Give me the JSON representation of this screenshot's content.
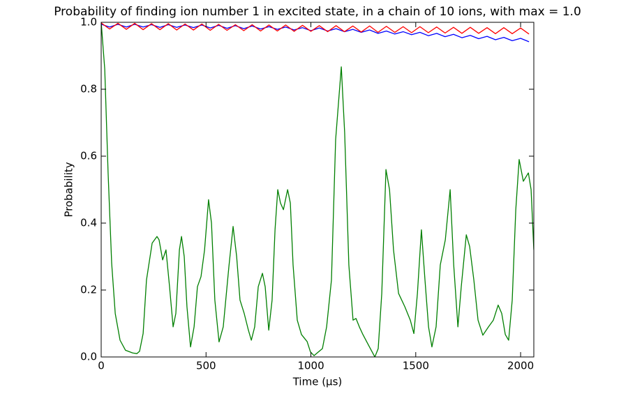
{
  "chart_data": {
    "type": "line",
    "title": "Probability of finding ion number 1 in excited state, in a chain of 10 ions, with max = 1.0",
    "xlabel": "Time (μs)",
    "ylabel": "Probability",
    "xlim": [
      0,
      2063
    ],
    "ylim": [
      0,
      1
    ],
    "xticks": [
      0,
      500,
      1000,
      1500,
      2000
    ],
    "yticks": [
      {
        "value": 0,
        "label": "0.0"
      },
      0.2,
      0.4,
      0.6,
      0.8,
      {
        "value": 1,
        "label": "1.0"
      }
    ],
    "grid": false,
    "series": [
      {
        "color": "#007f00",
        "x": [
          0,
          17,
          33,
          50,
          67,
          90,
          116,
          150,
          170,
          183,
          200,
          216,
          243,
          266,
          276,
          293,
          309,
          326,
          343,
          356,
          373,
          383,
          396,
          409,
          426,
          443,
          459,
          476,
          493,
          512,
          526,
          542,
          562,
          582,
          609,
          629,
          646,
          662,
          682,
          702,
          716,
          732,
          749,
          769,
          782,
          799,
          815,
          829,
          842,
          855,
          869,
          889,
          902,
          915,
          935,
          955,
          982,
          998,
          1015,
          1032,
          1055,
          1075,
          1098,
          1118,
          1145,
          1161,
          1181,
          1201,
          1215,
          1231,
          1248,
          1275,
          1305,
          1321,
          1338,
          1358,
          1375,
          1394,
          1418,
          1448,
          1474,
          1491,
          1508,
          1527,
          1544,
          1561,
          1577,
          1597,
          1617,
          1641,
          1664,
          1681,
          1701,
          1717,
          1741,
          1757,
          1777,
          1797,
          1820,
          1847,
          1870,
          1893,
          1910,
          1927,
          1943,
          1960,
          1977,
          1993,
          2013,
          2037,
          2050,
          2063
        ],
        "values": [
          1.0,
          0.86,
          0.55,
          0.28,
          0.13,
          0.05,
          0.02,
          0.012,
          0.01,
          0.017,
          0.07,
          0.23,
          0.34,
          0.36,
          0.35,
          0.29,
          0.32,
          0.21,
          0.09,
          0.13,
          0.32,
          0.36,
          0.3,
          0.15,
          0.03,
          0.09,
          0.21,
          0.24,
          0.32,
          0.47,
          0.4,
          0.17,
          0.045,
          0.09,
          0.27,
          0.39,
          0.3,
          0.17,
          0.13,
          0.08,
          0.05,
          0.09,
          0.21,
          0.25,
          0.21,
          0.08,
          0.17,
          0.38,
          0.5,
          0.46,
          0.44,
          0.5,
          0.46,
          0.275,
          0.11,
          0.067,
          0.046,
          0.015,
          0.004,
          0.013,
          0.025,
          0.09,
          0.23,
          0.65,
          0.867,
          0.67,
          0.275,
          0.11,
          0.115,
          0.09,
          0.067,
          0.035,
          0.0,
          0.025,
          0.19,
          0.56,
          0.5,
          0.32,
          0.19,
          0.15,
          0.11,
          0.07,
          0.19,
          0.38,
          0.23,
          0.09,
          0.03,
          0.09,
          0.275,
          0.35,
          0.5,
          0.275,
          0.09,
          0.21,
          0.365,
          0.33,
          0.23,
          0.11,
          0.065,
          0.09,
          0.11,
          0.155,
          0.13,
          0.067,
          0.05,
          0.17,
          0.44,
          0.59,
          0.525,
          0.55,
          0.5,
          0.32
        ]
      },
      {
        "color": "#0000ff",
        "x": [
          0,
          40,
          80,
          120,
          160,
          200,
          240,
          280,
          320,
          360,
          400,
          440,
          480,
          520,
          560,
          600,
          640,
          680,
          720,
          760,
          800,
          840,
          880,
          920,
          960,
          1000,
          1040,
          1080,
          1120,
          1160,
          1200,
          1240,
          1280,
          1320,
          1360,
          1400,
          1440,
          1480,
          1520,
          1560,
          1600,
          1640,
          1680,
          1720,
          1760,
          1800,
          1840,
          1880,
          1920,
          1960,
          2000,
          2040
        ],
        "values": [
          0.994,
          0.986,
          0.994,
          0.986,
          0.994,
          0.986,
          0.993,
          0.985,
          0.993,
          0.985,
          0.992,
          0.984,
          0.992,
          0.983,
          0.991,
          0.982,
          0.99,
          0.981,
          0.989,
          0.98,
          0.987,
          0.979,
          0.986,
          0.977,
          0.984,
          0.975,
          0.983,
          0.974,
          0.981,
          0.972,
          0.979,
          0.97,
          0.977,
          0.967,
          0.974,
          0.965,
          0.972,
          0.963,
          0.97,
          0.96,
          0.967,
          0.957,
          0.964,
          0.954,
          0.961,
          0.951,
          0.958,
          0.948,
          0.955,
          0.945,
          0.952,
          0.942
        ]
      },
      {
        "color": "#ff0000",
        "x": [
          0,
          40,
          80,
          120,
          160,
          200,
          240,
          280,
          320,
          360,
          400,
          440,
          480,
          520,
          560,
          600,
          640,
          680,
          720,
          760,
          800,
          840,
          880,
          920,
          960,
          1000,
          1040,
          1080,
          1120,
          1160,
          1200,
          1240,
          1280,
          1320,
          1360,
          1400,
          1440,
          1480,
          1520,
          1560,
          1600,
          1640,
          1680,
          1720,
          1760,
          1800,
          1840,
          1880,
          1920,
          1960,
          2000,
          2040
        ],
        "values": [
          0.998,
          0.98,
          0.997,
          0.979,
          0.997,
          0.978,
          0.996,
          0.978,
          0.996,
          0.977,
          0.995,
          0.977,
          0.995,
          0.976,
          0.994,
          0.976,
          0.993,
          0.975,
          0.993,
          0.974,
          0.992,
          0.974,
          0.992,
          0.973,
          0.991,
          0.973,
          0.99,
          0.972,
          0.99,
          0.972,
          0.989,
          0.971,
          0.989,
          0.97,
          0.988,
          0.97,
          0.987,
          0.969,
          0.987,
          0.969,
          0.986,
          0.968,
          0.985,
          0.967,
          0.985,
          0.967,
          0.984,
          0.966,
          0.984,
          0.966,
          0.983,
          0.965
        ]
      }
    ]
  }
}
